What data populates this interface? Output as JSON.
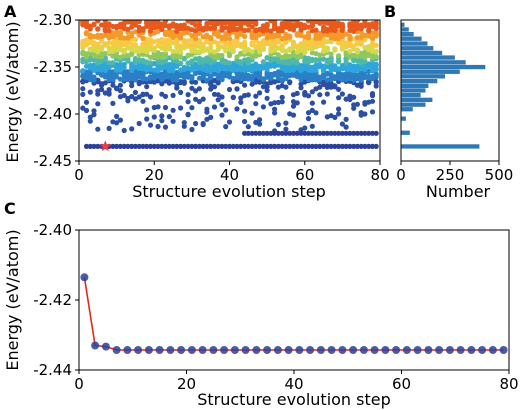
{
  "panels": {
    "a_label": "A",
    "b_label": "B",
    "c_label": "C"
  },
  "colors": {
    "marker_blue": "#2b3f96",
    "line_red": "#e3291c",
    "hist_bar": "#2f78b4",
    "star_red": "#ee3b3b",
    "scatter_palette": [
      "#e85a1c",
      "#f39a2a",
      "#f7ca45",
      "#d8d84a",
      "#8fc863",
      "#4fb8a8",
      "#2fa6db",
      "#2a7fc6",
      "#2c4ea3"
    ]
  },
  "chart_data": [
    {
      "id": "A",
      "type": "scatter",
      "title": "",
      "xlabel": "Structure evolution step",
      "ylabel": "Energy (eV/atom)",
      "xlim": [
        0,
        80
      ],
      "ylim": [
        -2.45,
        -2.3
      ],
      "xticks": [
        0,
        20,
        40,
        60,
        80
      ],
      "yticks": [
        -2.3,
        -2.35,
        -2.4,
        -2.45
      ],
      "grid": false,
      "legend": "none",
      "description_of_points": "about 30 candidate structures per step, colored by energy",
      "density": [
        {
          "energy_range": [
            -2.305,
            -2.345
          ],
          "color": "orange-yellow-green",
          "count_per_step": 12
        },
        {
          "energy_range": [
            -2.345,
            -2.365
          ],
          "color": "blue",
          "count_per_step": 10
        },
        {
          "energy_range": [
            -2.365,
            -2.42
          ],
          "color": "dark-blue",
          "count_per_step": 4
        }
      ],
      "ground_state_line": -2.4345,
      "secondary_line": -2.4205,
      "best_marker": {
        "x": 7,
        "y": -2.4345,
        "marker": "star"
      }
    },
    {
      "id": "B",
      "type": "bar",
      "orientation": "horizontal",
      "xlabel": "Number",
      "ylabel": "",
      "xlim": [
        0,
        500
      ],
      "ylim": [
        -2.45,
        -2.3
      ],
      "xticks": [
        0,
        250,
        500
      ],
      "energy_bins": [
        -2.305,
        -2.31,
        -2.315,
        -2.32,
        -2.325,
        -2.33,
        -2.335,
        -2.34,
        -2.345,
        -2.35,
        -2.355,
        -2.36,
        -2.365,
        -2.37,
        -2.375,
        -2.38,
        -2.385,
        -2.39,
        -2.395,
        -2.405,
        -2.42,
        -2.4345
      ],
      "counts": [
        18,
        40,
        65,
        105,
        135,
        165,
        210,
        275,
        330,
        430,
        300,
        225,
        185,
        140,
        125,
        100,
        160,
        125,
        60,
        25,
        45,
        400
      ]
    },
    {
      "id": "C",
      "type": "line",
      "xlabel": "Structure evolution step",
      "ylabel": "Energy (eV/atom)",
      "xlim": [
        0,
        80
      ],
      "ylim": [
        -2.44,
        -2.4
      ],
      "xticks": [
        0,
        20,
        40,
        60,
        80
      ],
      "yticks": [
        -2.4,
        -2.42,
        -2.44
      ],
      "grid": false,
      "legend": "none",
      "x": [
        1,
        3,
        5,
        7,
        9,
        11,
        13,
        15,
        17,
        19,
        21,
        23,
        25,
        27,
        29,
        31,
        33,
        35,
        37,
        39,
        41,
        43,
        45,
        47,
        49,
        51,
        53,
        55,
        57,
        59,
        61,
        63,
        65,
        67,
        69,
        71,
        73,
        75,
        77,
        79
      ],
      "y": [
        -2.4135,
        -2.433,
        -2.4333,
        -2.4343,
        -2.4343,
        -2.4343,
        -2.4343,
        -2.4343,
        -2.4343,
        -2.4343,
        -2.4343,
        -2.4343,
        -2.4343,
        -2.4343,
        -2.4343,
        -2.4343,
        -2.4343,
        -2.4343,
        -2.4343,
        -2.4343,
        -2.4343,
        -2.4343,
        -2.4343,
        -2.4343,
        -2.4343,
        -2.4343,
        -2.4343,
        -2.4343,
        -2.4343,
        -2.4343,
        -2.4343,
        -2.4343,
        -2.4343,
        -2.4343,
        -2.4343,
        -2.4343,
        -2.4343,
        -2.4343,
        -2.4343,
        -2.4343
      ]
    }
  ]
}
